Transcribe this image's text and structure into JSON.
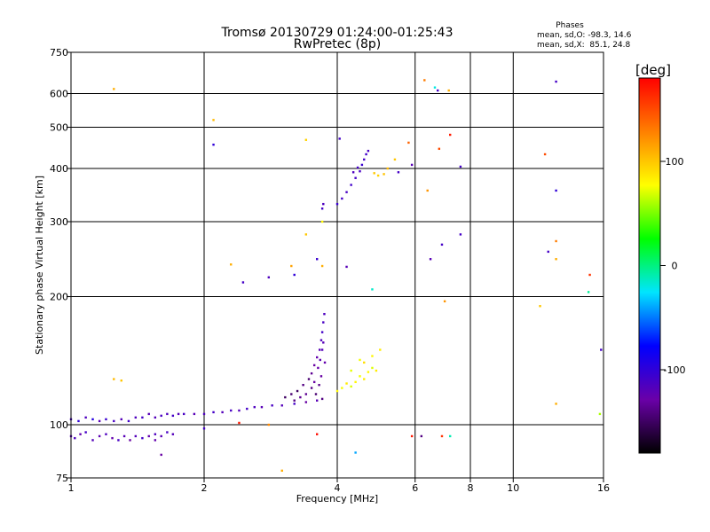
{
  "chart_data": {
    "type": "scatter",
    "title": "Tromsø 20130729 01:24:00-01:25:43",
    "subtitle": "RwPretec (8p)",
    "xlabel": "Frequency [MHz]",
    "ylabel": "Stationary phase Virtual Height [km]",
    "x_scale": "log",
    "y_scale": "log",
    "xlim": [
      1,
      16
    ],
    "ylim": [
      75,
      750
    ],
    "x_ticks": [
      1,
      2,
      4,
      6,
      8,
      10,
      16
    ],
    "y_ticks": [
      75,
      100,
      200,
      300,
      400,
      500,
      600,
      750
    ],
    "grid": true,
    "stats": {
      "title": "Phases",
      "line_o": "mean, sd,O: -98.3, 14.6",
      "line_x": "mean, sd,X:  85.1, 24.8"
    },
    "colorbar": {
      "label": "[deg]",
      "min": -180,
      "max": 180,
      "ticks": [
        100,
        0,
        -100
      ],
      "colors": [
        "#000000",
        "#6a00a8",
        "#0000ff",
        "#00e5ff",
        "#00ff00",
        "#ffff00",
        "#ff8000",
        "#ff0000"
      ]
    },
    "series": [
      {
        "mode": "O",
        "points": [
          [
            1.0,
            94,
            -120
          ],
          [
            1.02,
            93,
            -115
          ],
          [
            1.05,
            95,
            -125
          ],
          [
            1.08,
            96,
            -110
          ],
          [
            1.12,
            92,
            -118
          ],
          [
            1.16,
            94,
            -122
          ],
          [
            1.2,
            95,
            -115
          ],
          [
            1.24,
            93,
            -125
          ],
          [
            1.28,
            92,
            -112
          ],
          [
            1.32,
            94,
            -120
          ],
          [
            1.36,
            92,
            -130
          ],
          [
            1.4,
            94,
            -118
          ],
          [
            1.45,
            93,
            -110
          ],
          [
            1.5,
            94,
            -125
          ],
          [
            1.55,
            95,
            -115
          ],
          [
            1.6,
            94,
            -120
          ],
          [
            1.65,
            96,
            -112
          ],
          [
            1.7,
            95,
            -118
          ],
          [
            1.0,
            103,
            -110
          ],
          [
            1.04,
            102,
            -100
          ],
          [
            1.08,
            104,
            -115
          ],
          [
            1.12,
            103,
            -95
          ],
          [
            1.16,
            102,
            -120
          ],
          [
            1.2,
            103,
            -105
          ],
          [
            1.25,
            102,
            -112
          ],
          [
            1.3,
            103,
            -118
          ],
          [
            1.35,
            102,
            -108
          ],
          [
            1.4,
            104,
            -115
          ],
          [
            1.45,
            104,
            -110
          ],
          [
            1.5,
            106,
            -120
          ],
          [
            1.55,
            104,
            -118
          ],
          [
            1.6,
            105,
            -112
          ],
          [
            1.65,
            106,
            -115
          ],
          [
            1.7,
            105,
            -110
          ],
          [
            1.75,
            106,
            -118
          ],
          [
            1.8,
            106,
            -112
          ],
          [
            1.9,
            106,
            -120
          ],
          [
            2.0,
            106,
            -115
          ],
          [
            2.1,
            107,
            -110
          ],
          [
            2.2,
            107,
            -118
          ],
          [
            2.3,
            108,
            -112
          ],
          [
            2.4,
            108,
            -118
          ],
          [
            2.5,
            109,
            -110
          ],
          [
            2.6,
            110,
            -115
          ],
          [
            2.7,
            110,
            -120
          ],
          [
            2.85,
            111,
            -112
          ],
          [
            3.0,
            111,
            -118
          ],
          [
            3.2,
            112,
            -110
          ],
          [
            3.4,
            113,
            -130
          ],
          [
            3.6,
            114,
            -120
          ],
          [
            3.7,
            115,
            -140
          ],
          [
            3.05,
            116,
            -150
          ],
          [
            3.15,
            118,
            -145
          ],
          [
            3.25,
            120,
            -150
          ],
          [
            3.35,
            124,
            -140
          ],
          [
            3.45,
            128,
            -145
          ],
          [
            3.5,
            132,
            -135
          ],
          [
            3.55,
            138,
            -130
          ],
          [
            3.6,
            144,
            -125
          ],
          [
            3.65,
            150,
            -120
          ],
          [
            3.68,
            158,
            -115
          ],
          [
            3.7,
            165,
            -110
          ],
          [
            3.72,
            174,
            -112
          ],
          [
            3.74,
            182,
            -115
          ],
          [
            3.4,
            118,
            -135
          ],
          [
            3.5,
            122,
            -140
          ],
          [
            3.55,
            126,
            -130
          ],
          [
            3.62,
            136,
            -128
          ],
          [
            3.66,
            142,
            -122
          ],
          [
            3.7,
            150,
            -118
          ],
          [
            3.72,
            156,
            -120
          ],
          [
            3.2,
            114,
            -140
          ],
          [
            3.3,
            116,
            -135
          ],
          [
            3.58,
            118,
            -145
          ],
          [
            3.64,
            124,
            -138
          ],
          [
            3.68,
            130,
            -130
          ],
          [
            3.75,
            140,
            -125
          ],
          [
            3.7,
            322,
            -110
          ],
          [
            3.72,
            330,
            -115
          ],
          [
            4.0,
            330,
            -105
          ],
          [
            4.1,
            340,
            -110
          ],
          [
            4.2,
            352,
            -112
          ],
          [
            4.3,
            366,
            -108
          ],
          [
            4.4,
            380,
            -110
          ],
          [
            4.5,
            394,
            -112
          ],
          [
            4.55,
            408,
            -105
          ],
          [
            4.6,
            420,
            -110
          ],
          [
            4.65,
            432,
            -108
          ],
          [
            4.7,
            440,
            -112
          ],
          [
            4.35,
            392,
            -115
          ],
          [
            4.45,
            402,
            -110
          ]
        ]
      },
      {
        "mode": "X",
        "points": [
          [
            4.0,
            120,
            80
          ],
          [
            4.1,
            122,
            75
          ],
          [
            4.2,
            125,
            85
          ],
          [
            4.3,
            123,
            70
          ],
          [
            4.4,
            126,
            80
          ],
          [
            4.5,
            130,
            75
          ],
          [
            4.6,
            128,
            85
          ],
          [
            4.7,
            133,
            80
          ],
          [
            4.8,
            136,
            70
          ],
          [
            4.9,
            134,
            85
          ],
          [
            4.6,
            140,
            90
          ],
          [
            4.8,
            145,
            80
          ],
          [
            5.0,
            150,
            85
          ],
          [
            4.5,
            142,
            75
          ],
          [
            4.3,
            134,
            72
          ],
          [
            4.85,
            390,
            100
          ],
          [
            4.95,
            385,
            95
          ],
          [
            5.2,
            400,
            105
          ],
          [
            5.4,
            420,
            100
          ],
          [
            5.1,
            388,
            102
          ]
        ]
      },
      {
        "mode": "scattered",
        "points": [
          [
            1.25,
            615,
            110
          ],
          [
            1.25,
            128,
            105
          ],
          [
            1.3,
            127,
            100
          ],
          [
            2.1,
            520,
            105
          ],
          [
            2.1,
            455,
            -100
          ],
          [
            2.3,
            238,
            110
          ],
          [
            2.45,
            216,
            -110
          ],
          [
            2.8,
            222,
            -115
          ],
          [
            3.15,
            236,
            115
          ],
          [
            3.2,
            225,
            -100
          ],
          [
            3.4,
            467,
            95
          ],
          [
            3.4,
            280,
            100
          ],
          [
            3.6,
            245,
            -105
          ],
          [
            3.7,
            236,
            110
          ],
          [
            3.7,
            300,
            80
          ],
          [
            4.05,
            470,
            -110
          ],
          [
            4.2,
            235,
            -120
          ],
          [
            4.8,
            208,
            -15
          ],
          [
            5.5,
            392,
            -110
          ],
          [
            5.8,
            460,
            140
          ],
          [
            5.9,
            408,
            -120
          ],
          [
            6.3,
            645,
            130
          ],
          [
            6.4,
            355,
            120
          ],
          [
            6.5,
            245,
            -120
          ],
          [
            6.65,
            620,
            -20
          ],
          [
            6.75,
            610,
            -110
          ],
          [
            6.8,
            445,
            150
          ],
          [
            6.9,
            265,
            -110
          ],
          [
            7.0,
            195,
            120
          ],
          [
            7.15,
            610,
            110
          ],
          [
            7.2,
            480,
            170
          ],
          [
            7.6,
            280,
            -110
          ],
          [
            7.6,
            404,
            -110
          ],
          [
            11.8,
            432,
            150
          ],
          [
            12.5,
            640,
            -110
          ],
          [
            12.0,
            255,
            -110
          ],
          [
            12.5,
            270,
            130
          ],
          [
            12.5,
            245,
            110
          ],
          [
            12.5,
            355,
            -100
          ],
          [
            11.5,
            190,
            100
          ],
          [
            14.9,
            225,
            160
          ],
          [
            14.8,
            205,
            -5
          ],
          [
            15.8,
            150,
            -110
          ],
          [
            15.7,
            106,
            60
          ],
          [
            12.5,
            112,
            110
          ],
          [
            6.2,
            94,
            -140
          ],
          [
            6.9,
            94,
            160
          ],
          [
            7.2,
            94,
            -10
          ],
          [
            3.6,
            95,
            175
          ],
          [
            4.4,
            86,
            -40
          ],
          [
            3.0,
            78,
            110
          ],
          [
            2.0,
            98,
            -110
          ],
          [
            1.6,
            85,
            -130
          ],
          [
            1.55,
            92,
            -125
          ],
          [
            5.9,
            94,
            170
          ],
          [
            2.8,
            100,
            125
          ],
          [
            2.4,
            101,
            170
          ]
        ]
      }
    ]
  }
}
